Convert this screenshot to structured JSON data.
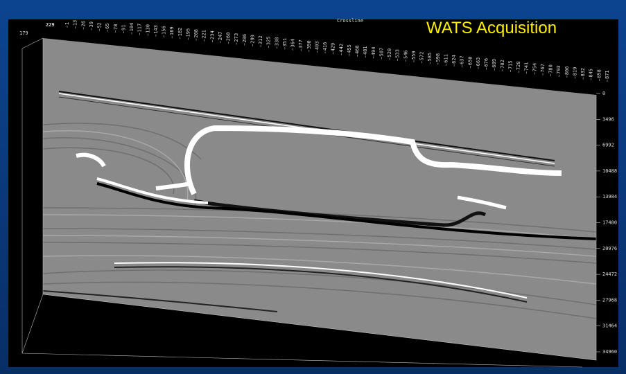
{
  "title": "WATS Acquisition",
  "axis_title": "Crossline",
  "inline_label": "229",
  "corner_label": "179",
  "crossline_labels": [
    1,
    13,
    26,
    39,
    52,
    65,
    78,
    91,
    104,
    117,
    130,
    143,
    156,
    169,
    182,
    195,
    208,
    221,
    234,
    247,
    260,
    273,
    286,
    299,
    312,
    325,
    338,
    351,
    364,
    377,
    390,
    403,
    416,
    429,
    442,
    455,
    468,
    481,
    494,
    507,
    520,
    533,
    546,
    559,
    572,
    585,
    598,
    611,
    624,
    637,
    650,
    663,
    676,
    689,
    702,
    715,
    728,
    741,
    754,
    767,
    780,
    793,
    806,
    819,
    832,
    845,
    858,
    871
  ],
  "depth_labels": [
    0,
    3496,
    6992,
    10488,
    13984,
    17480,
    20976,
    24472,
    27968,
    31464,
    34960
  ]
}
